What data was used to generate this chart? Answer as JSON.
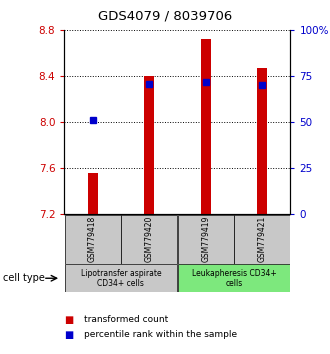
{
  "title": "GDS4079 / 8039706",
  "samples": [
    "GSM779418",
    "GSM779420",
    "GSM779419",
    "GSM779421"
  ],
  "bar_bottoms": [
    7.2,
    7.2,
    7.2,
    7.2
  ],
  "bar_tops": [
    7.555,
    8.4,
    8.72,
    8.47
  ],
  "percentile_values": [
    8.022,
    8.33,
    8.348,
    8.32
  ],
  "ylim_left": [
    7.2,
    8.8
  ],
  "ylim_right": [
    0,
    100
  ],
  "yticks_left": [
    7.2,
    7.6,
    8.0,
    8.4,
    8.8
  ],
  "yticks_right": [
    0,
    25,
    50,
    75,
    100
  ],
  "ytick_labels_right": [
    "0",
    "25",
    "50",
    "75",
    "100%"
  ],
  "bar_color": "#cc0000",
  "percentile_color": "#0000cc",
  "left_tick_color": "#cc0000",
  "right_tick_color": "#0000cc",
  "group_labels": [
    "Lipotransfer aspirate\nCD34+ cells",
    "Leukapheresis CD34+\ncells"
  ],
  "group_colors": [
    "#c8c8c8",
    "#7de87d"
  ],
  "cell_type_label": "cell type",
  "legend_entries": [
    {
      "color": "#cc0000",
      "label": "transformed count"
    },
    {
      "color": "#0000cc",
      "label": "percentile rank within the sample"
    }
  ],
  "bar_width": 0.18,
  "figsize": [
    3.3,
    3.54
  ],
  "dpi": 100
}
